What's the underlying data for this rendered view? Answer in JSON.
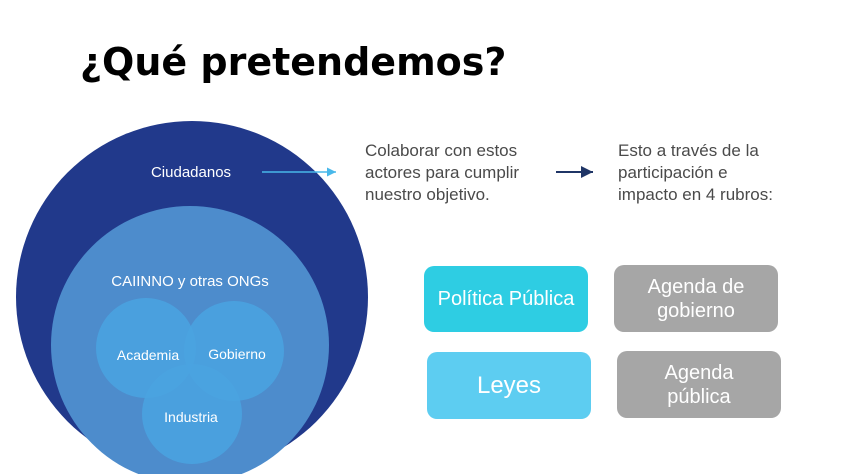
{
  "title": "¿Qué pretendemos?",
  "circles": {
    "outer": "Ciudadanos",
    "middle": "CAIINNO y otras ONGs",
    "inner": [
      "Academia",
      "Gobierno",
      "Industria"
    ]
  },
  "steps": {
    "collaborate": "Colaborar con estos\nactores para cumplir\nnuestro objetivo.",
    "through": "Esto a través de la\nparticipación e\nimpacto en 4 rubros:"
  },
  "rubros": [
    {
      "label": "Política Pública",
      "color": "#2ecde3"
    },
    {
      "label": "Agenda de\ngobierno",
      "color": "#a6a6a6"
    },
    {
      "label": "Leyes",
      "color": "#5dcdf1"
    },
    {
      "label": "Agenda\npública",
      "color": "#a6a6a6"
    }
  ],
  "colors": {
    "outer_circle": "#21398b",
    "middle_circle": "#4d8ccc",
    "inner_circle": "#4aa3e0",
    "light_arrow": "#49b8ea",
    "dark_arrow": "#1f3566"
  }
}
